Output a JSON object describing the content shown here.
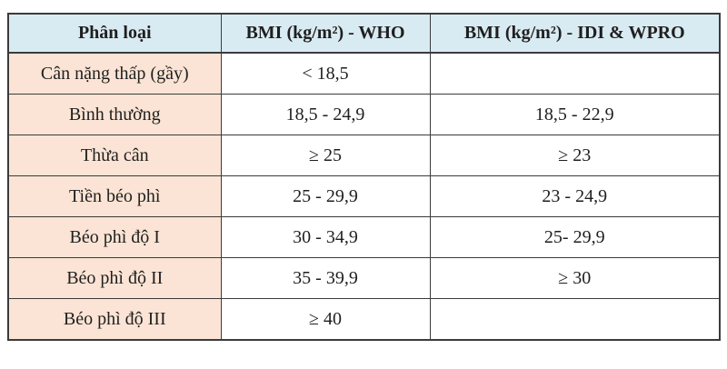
{
  "table": {
    "title_semantic": "BMI classification table (WHO vs IDI & WPRO)",
    "columns": [
      {
        "label": "Phân loại"
      },
      {
        "label": "BMI (kg/m²) - WHO"
      },
      {
        "label": "BMI (kg/m²) - IDI & WPRO"
      }
    ],
    "rows": [
      {
        "label": "Cân nặng thấp (gầy)",
        "who": "< 18,5",
        "idi_wpro": ""
      },
      {
        "label": "Bình thường",
        "who": "18,5 - 24,9",
        "idi_wpro": "18,5 - 22,9"
      },
      {
        "label": "Thừa cân",
        "who": "≥ 25",
        "idi_wpro": "≥ 23"
      },
      {
        "label": "Tiền béo phì",
        "who": "25 - 29,9",
        "idi_wpro": "23 - 24,9"
      },
      {
        "label": "Béo phì độ I",
        "who": "30 - 34,9",
        "idi_wpro": "25- 29,9"
      },
      {
        "label": "Béo phì độ II",
        "who": "35 - 39,9",
        "idi_wpro": "≥ 30"
      },
      {
        "label": "Béo phì độ III",
        "who": "≥ 40",
        "idi_wpro": ""
      }
    ],
    "colors": {
      "header_bg": "#d9ebf2",
      "label_column_bg": "#fbe4d5",
      "value_cell_bg": "#ffffff",
      "border": "#3b3b3b",
      "text": "#1f1f1f"
    }
  }
}
